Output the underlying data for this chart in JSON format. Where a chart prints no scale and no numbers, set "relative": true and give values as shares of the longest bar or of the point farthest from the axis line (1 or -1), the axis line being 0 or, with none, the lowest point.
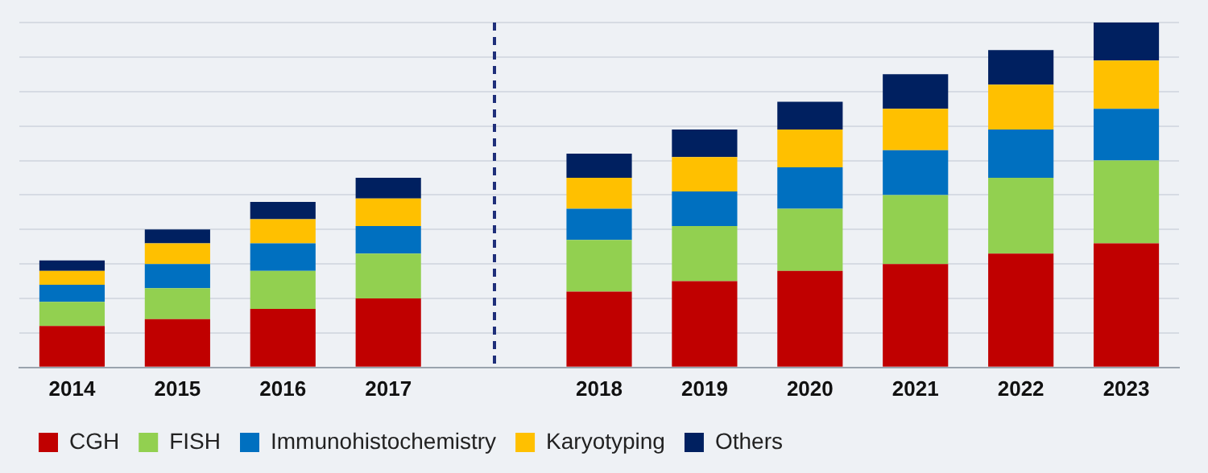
{
  "chart_data": {
    "type": "bar",
    "stacked": true,
    "relative": true,
    "grid": "y",
    "legend": "bottom left",
    "categories": [
      "2014",
      "2015",
      "2016",
      "2017",
      null,
      "2018",
      "2019",
      "2020",
      "2021",
      "2022",
      "2023"
    ],
    "series": [
      {
        "name": "CGH",
        "color": "#c00000",
        "values": [
          0.12,
          0.14,
          0.17,
          0.2,
          null,
          0.22,
          0.25,
          0.28,
          0.3,
          0.33,
          0.36
        ]
      },
      {
        "name": "FISH",
        "color": "#92d050",
        "values": [
          0.07,
          0.09,
          0.11,
          0.13,
          null,
          0.15,
          0.16,
          0.18,
          0.2,
          0.22,
          0.24
        ]
      },
      {
        "name": "Immunohistochemistry",
        "color": "#0070c0",
        "values": [
          0.05,
          0.07,
          0.08,
          0.08,
          null,
          0.09,
          0.1,
          0.12,
          0.13,
          0.14,
          0.15
        ]
      },
      {
        "name": "Karyotyping",
        "color": "#ffc000",
        "values": [
          0.04,
          0.06,
          0.07,
          0.08,
          null,
          0.09,
          0.1,
          0.11,
          0.12,
          0.13,
          0.14
        ]
      },
      {
        "name": "Others",
        "color": "#002060",
        "values": [
          0.03,
          0.04,
          0.05,
          0.06,
          null,
          0.07,
          0.08,
          0.08,
          0.1,
          0.1,
          0.11
        ]
      }
    ]
  }
}
